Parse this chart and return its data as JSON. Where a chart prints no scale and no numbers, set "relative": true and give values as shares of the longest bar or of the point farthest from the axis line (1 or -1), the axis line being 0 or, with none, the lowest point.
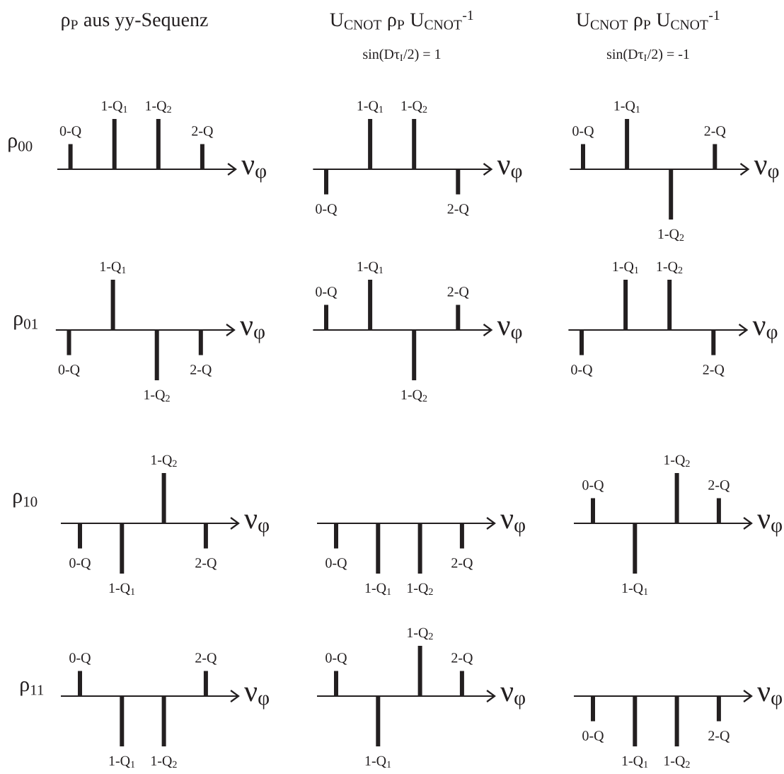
{
  "chart_data": [
    {
      "type": "bar",
      "title": "ρ$_{P}$ aus yy-Sequenz",
      "ylabel": "ρ$_{00}$",
      "xlabel": "ν$_{φ}$",
      "relative": true,
      "categories": [
        "0-Q",
        "1-Q$_{1}$",
        "1-Q$_{2}$",
        "2-Q"
      ],
      "values": [
        0.5,
        1,
        1,
        0.5
      ],
      "color": "#231f20"
    },
    {
      "type": "bar",
      "title": "U$_{CNOT}$ ρ$_{P}$ U$_{CNOT}$$^{-1}$",
      "subtitle": "sin(Dτ$_{I}$/2) = 1",
      "xlabel": "ν$_{φ}$",
      "relative": true,
      "categories": [
        "0-Q",
        "1-Q$_{1}$",
        "1-Q$_{2}$",
        "2-Q"
      ],
      "values": [
        -0.5,
        1,
        1,
        -0.5
      ],
      "color": "#231f20"
    },
    {
      "type": "bar",
      "title": "U$_{CNOT}$ ρ$_{P}$ U$_{CNOT}$$^{-1}$",
      "subtitle": "sin(Dτ$_{I}$/2) = -1",
      "xlabel": "ν$_{φ}$",
      "relative": true,
      "categories": [
        "0-Q",
        "1-Q$_{1}$",
        "1-Q$_{2}$",
        "2-Q"
      ],
      "values": [
        0.5,
        1,
        -1,
        0.5
      ],
      "color": "#231f20"
    },
    {
      "type": "bar",
      "ylabel": "ρ$_{01}$",
      "xlabel": "ν$_{φ}$",
      "relative": true,
      "categories": [
        "0-Q",
        "1-Q$_{1}$",
        "1-Q$_{2}$",
        "2-Q"
      ],
      "values": [
        -0.5,
        1,
        -1,
        -0.5
      ],
      "color": "#231f20"
    },
    {
      "type": "bar",
      "xlabel": "ν$_{φ}$",
      "relative": true,
      "categories": [
        "0-Q",
        "1-Q$_{1}$",
        "1-Q$_{2}$",
        "2-Q"
      ],
      "values": [
        0.5,
        1,
        -1,
        0.5
      ],
      "color": "#231f20"
    },
    {
      "type": "bar",
      "xlabel": "ν$_{φ}$",
      "relative": true,
      "categories": [
        "0-Q",
        "1-Q$_{1}$",
        "1-Q$_{2}$",
        "2-Q"
      ],
      "values": [
        -0.5,
        1,
        1,
        -0.5
      ],
      "color": "#231f20"
    },
    {
      "type": "bar",
      "ylabel": "ρ$_{10}$",
      "xlabel": "ν$_{φ}$",
      "relative": true,
      "categories": [
        "0-Q",
        "1-Q$_{1}$",
        "1-Q$_{2}$",
        "2-Q"
      ],
      "values": [
        -0.5,
        -1,
        1,
        -0.5
      ],
      "color": "#231f20"
    },
    {
      "type": "bar",
      "xlabel": "ν$_{φ}$",
      "relative": true,
      "categories": [
        "0-Q",
        "1-Q$_{1}$",
        "1-Q$_{2}$",
        "2-Q"
      ],
      "values": [
        -0.5,
        -1,
        -1,
        -0.5
      ],
      "color": "#231f20"
    },
    {
      "type": "bar",
      "xlabel": "ν$_{φ}$",
      "relative": true,
      "categories": [
        "0-Q",
        "1-Q$_{1}$",
        "1-Q$_{2}$",
        "2-Q"
      ],
      "values": [
        0.5,
        -1,
        1,
        0.5
      ],
      "color": "#231f20"
    },
    {
      "type": "bar",
      "ylabel": "ρ$_{11}$",
      "xlabel": "ν$_{φ}$",
      "relative": true,
      "categories": [
        "0-Q",
        "1-Q$_{1}$",
        "1-Q$_{2}$",
        "2-Q"
      ],
      "values": [
        0.5,
        -1,
        -1,
        0.5
      ],
      "color": "#231f20"
    },
    {
      "type": "bar",
      "xlabel": "ν$_{φ}$",
      "relative": true,
      "categories": [
        "0-Q",
        "1-Q$_{1}$",
        "1-Q$_{2}$",
        "2-Q"
      ],
      "values": [
        0.5,
        -1,
        1,
        0.5
      ],
      "color": "#231f20"
    },
    {
      "type": "bar",
      "xlabel": "ν$_{φ}$",
      "relative": true,
      "categories": [
        "0-Q",
        "1-Q$_{1}$",
        "1-Q$_{2}$",
        "2-Q"
      ],
      "values": [
        -0.5,
        -1,
        -1,
        -0.5
      ],
      "color": "#231f20"
    }
  ]
}
